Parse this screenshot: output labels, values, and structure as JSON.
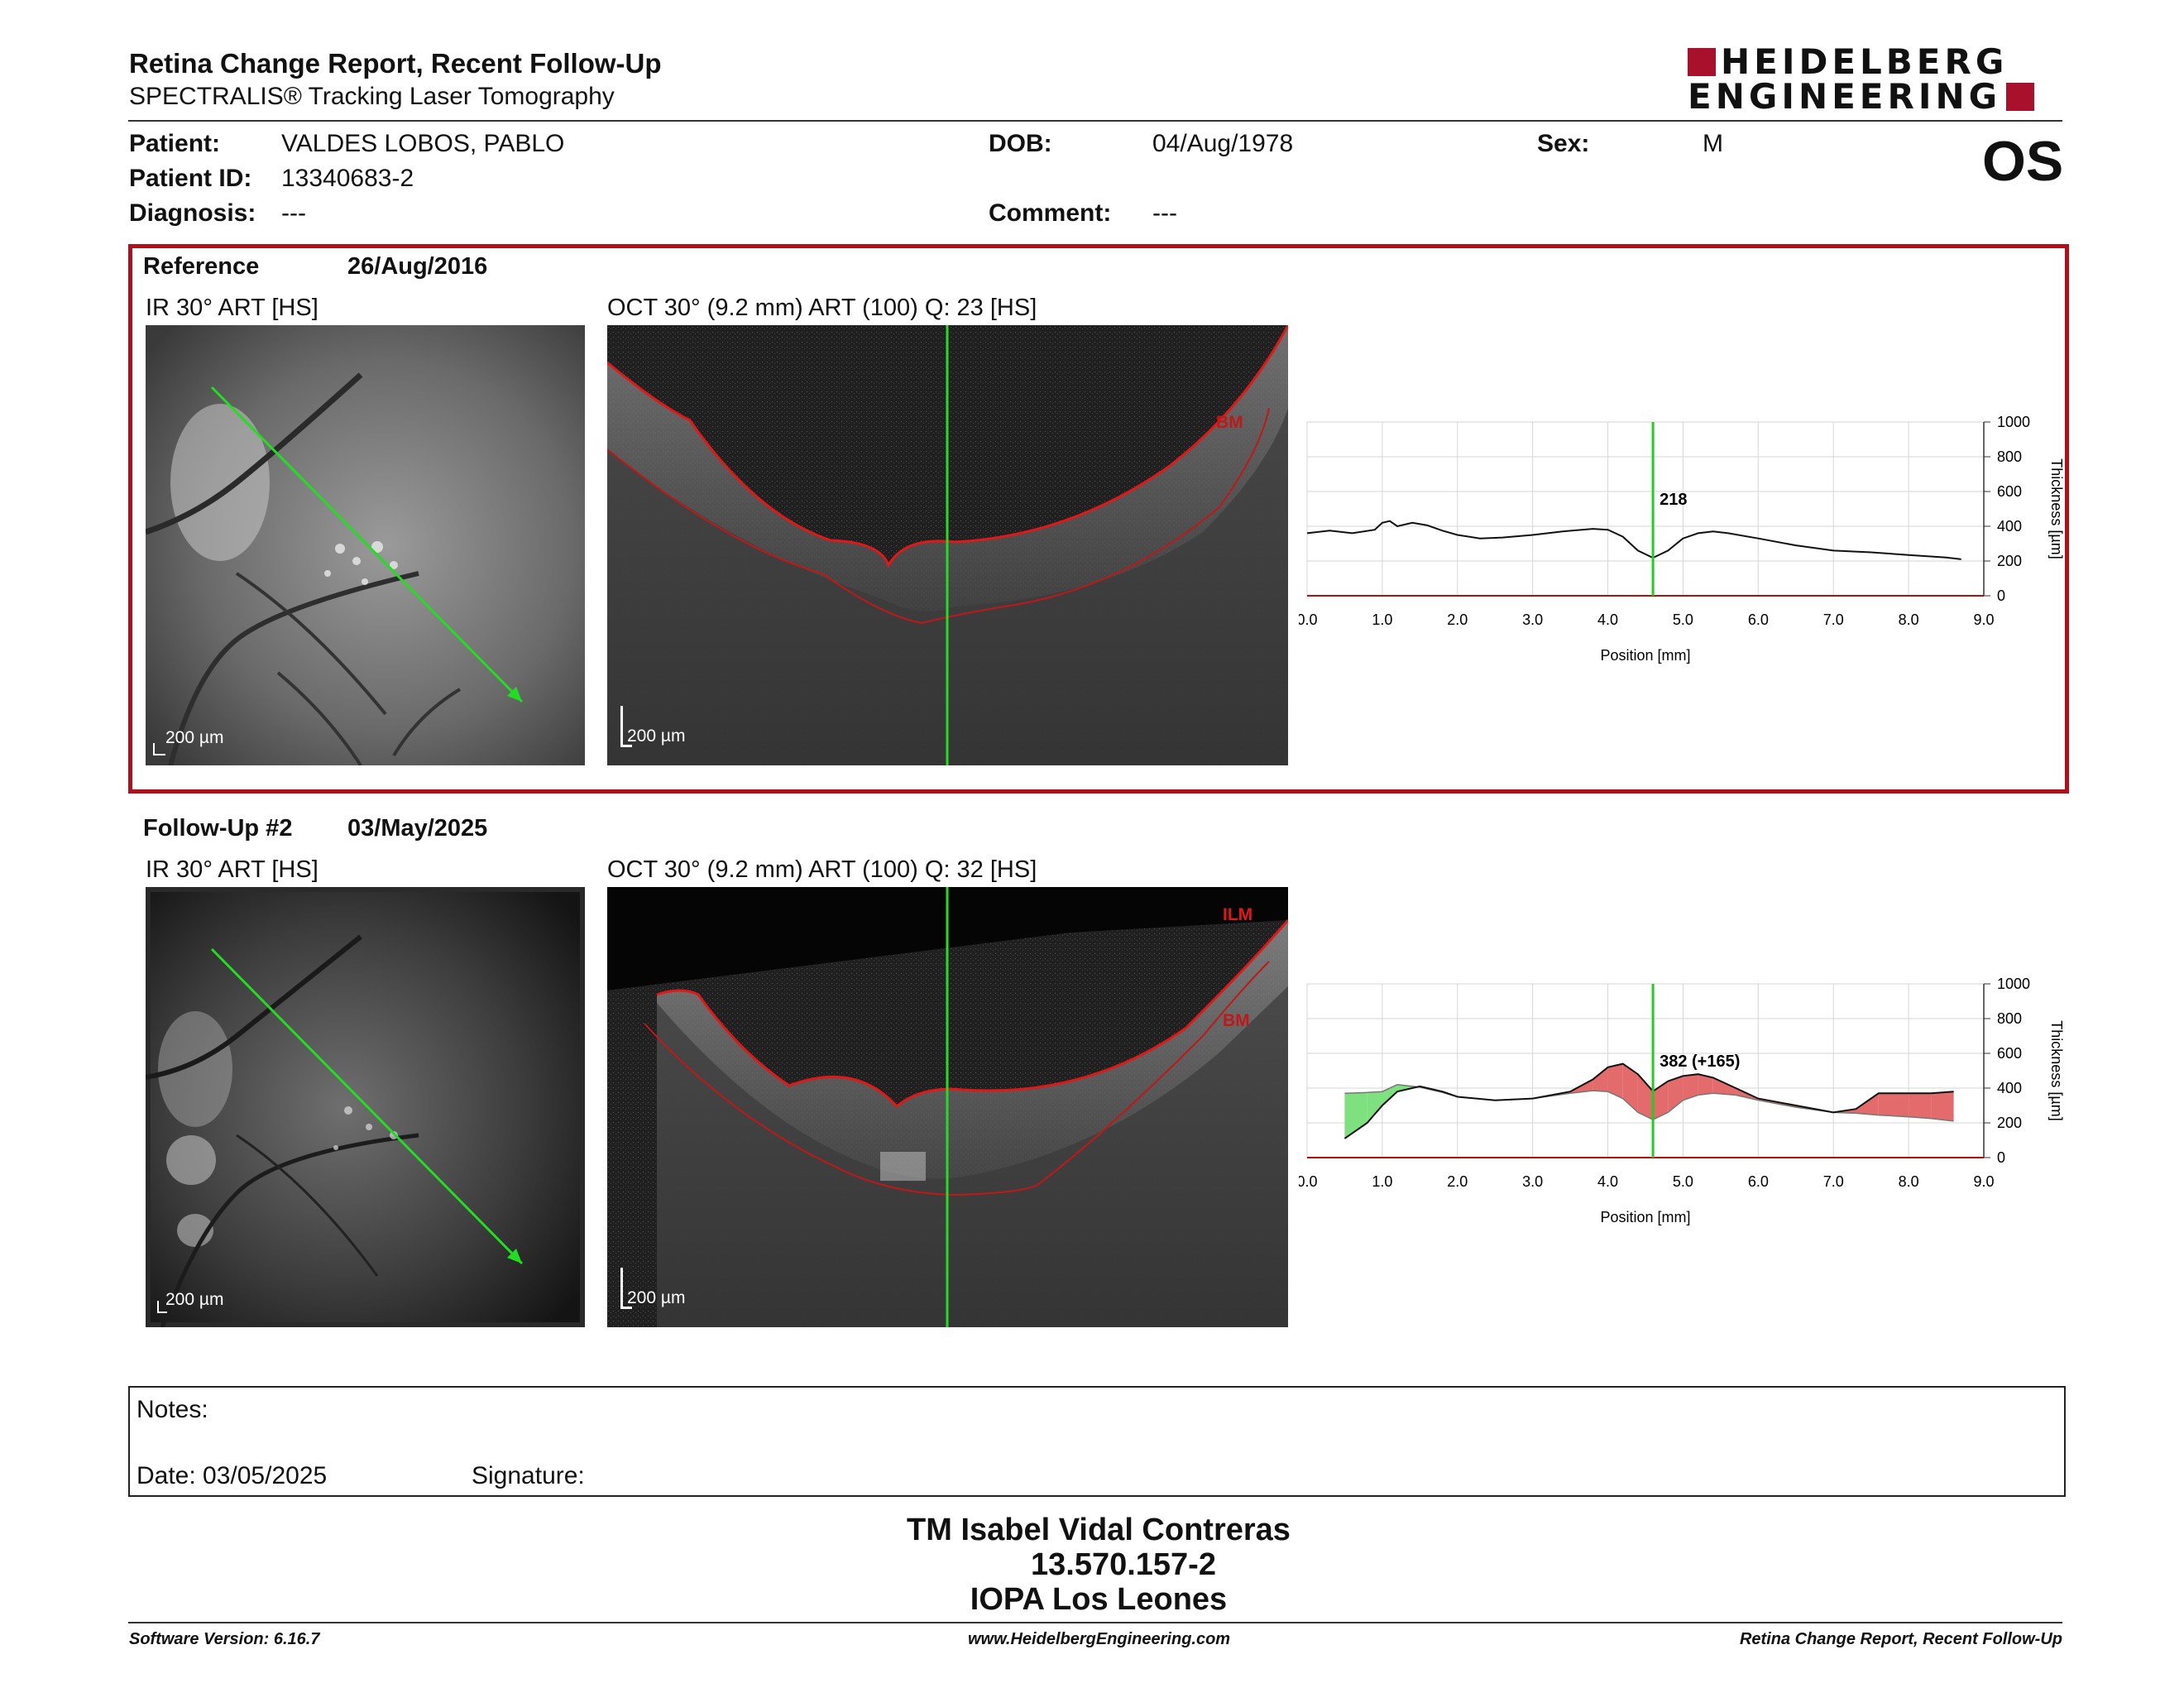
{
  "report": {
    "title": "Retina Change Report, Recent Follow-Up",
    "subtitle": "SPECTRALIS® Tracking Laser Tomography",
    "brand_line1": "HEIDELBERG",
    "brand_line2": "ENGINEERING",
    "brand_color": "#a8102c",
    "eye": "OS"
  },
  "patient": {
    "name_label": "Patient:",
    "name": "VALDES LOBOS, PABLO",
    "id_label": "Patient ID:",
    "id": "13340683-2",
    "diagnosis_label": "Diagnosis:",
    "diagnosis": "---",
    "dob_label": "DOB:",
    "dob": "04/Aug/1978",
    "comment_label": "Comment:",
    "comment": "---",
    "sex_label": "Sex:",
    "sex": "M"
  },
  "reference": {
    "label": "Reference",
    "date": "26/Aug/2016",
    "ir_caption": "IR 30° ART [HS]",
    "oct_caption": "OCT 30° (9.2 mm) ART (100) Q: 23 [HS]",
    "ir_scale": "200 µm",
    "oct_scale": "200 µm",
    "layer_labels": [
      "BM"
    ],
    "border_color": "#b0101c"
  },
  "followup": {
    "label": "Follow-Up #2",
    "date": "03/May/2025",
    "ir_caption": "IR 30° ART [HS]",
    "oct_caption": "OCT 30° (9.2 mm) ART (100) Q: 32 [HS]",
    "ir_scale": "200 µm",
    "oct_scale": "200 µm",
    "layer_labels": [
      "ILM",
      "BM"
    ]
  },
  "chart_data": [
    {
      "type": "line",
      "xlabel": "Position [mm]",
      "ylabel": "Thickness [µm]",
      "xlim": [
        0,
        9
      ],
      "ylim": [
        0,
        1000
      ],
      "xticks": [
        "0.0",
        "1.0",
        "2.0",
        "3.0",
        "4.0",
        "5.0",
        "6.0",
        "7.0",
        "8.0",
        "9.0"
      ],
      "yticks": [
        "0",
        "200",
        "400",
        "600",
        "800",
        "1000"
      ],
      "grid": true,
      "cursor_x": 4.6,
      "cursor_label": "218",
      "cursor_color": "#22cc22",
      "series": [
        {
          "x": [
            0.0,
            0.3,
            0.6,
            0.9,
            1.0,
            1.1,
            1.2,
            1.4,
            1.6,
            1.8,
            2.0,
            2.3,
            2.6,
            3.0,
            3.4,
            3.8,
            4.0,
            4.2,
            4.4,
            4.6,
            4.8,
            5.0,
            5.2,
            5.4,
            5.6,
            6.0,
            6.5,
            7.0,
            7.5,
            8.0,
            8.5,
            8.7
          ],
          "y": [
            360,
            375,
            360,
            380,
            420,
            430,
            400,
            420,
            405,
            375,
            350,
            330,
            335,
            350,
            370,
            385,
            380,
            340,
            260,
            218,
            260,
            330,
            360,
            370,
            360,
            330,
            290,
            260,
            250,
            235,
            220,
            210
          ]
        }
      ]
    },
    {
      "type": "area",
      "xlabel": "Position [mm]",
      "ylabel": "Thickness [µm]",
      "xlim": [
        0,
        9
      ],
      "ylim": [
        0,
        1000
      ],
      "xticks": [
        "0.0",
        "1.0",
        "2.0",
        "3.0",
        "4.0",
        "5.0",
        "6.0",
        "7.0",
        "8.0",
        "9.0"
      ],
      "yticks": [
        "0",
        "200",
        "400",
        "600",
        "800",
        "1000"
      ],
      "grid": true,
      "cursor_x": 4.6,
      "cursor_label": "382 (+165)",
      "cursor_color": "#22cc22",
      "increase_color": "#e46b6b",
      "decrease_color": "#7fe07f",
      "series": [
        {
          "name": "Follow-Up",
          "x": [
            0.5,
            0.8,
            1.0,
            1.2,
            1.5,
            1.8,
            2.0,
            2.5,
            3.0,
            3.5,
            3.8,
            4.0,
            4.2,
            4.4,
            4.6,
            4.8,
            5.0,
            5.2,
            5.4,
            5.7,
            6.0,
            6.5,
            7.0,
            7.3,
            7.6,
            8.0,
            8.3,
            8.6
          ],
          "y": [
            110,
            200,
            300,
            380,
            410,
            380,
            350,
            330,
            340,
            380,
            450,
            520,
            540,
            480,
            382,
            440,
            470,
            480,
            460,
            400,
            340,
            300,
            260,
            280,
            370,
            370,
            370,
            380
          ]
        },
        {
          "name": "Reference",
          "x": [
            0.5,
            0.8,
            1.0,
            1.2,
            1.5,
            1.8,
            2.0,
            2.5,
            3.0,
            3.5,
            3.8,
            4.0,
            4.2,
            4.4,
            4.6,
            4.8,
            5.0,
            5.2,
            5.4,
            5.7,
            6.0,
            6.5,
            7.0,
            7.3,
            7.6,
            8.0,
            8.3,
            8.6
          ],
          "y": [
            370,
            375,
            380,
            420,
            405,
            375,
            350,
            330,
            340,
            370,
            385,
            380,
            340,
            260,
            218,
            260,
            330,
            360,
            370,
            360,
            330,
            290,
            260,
            255,
            245,
            235,
            225,
            210
          ]
        }
      ]
    }
  ],
  "notes": {
    "label": "Notes:",
    "date_text": "Date: 03/05/2025",
    "signature_label": "Signature:"
  },
  "signature_block": {
    "line1": "TM Isabel Vidal Contreras",
    "line2": "13.570.157-2",
    "line3": "IOPA Los Leones"
  },
  "footer": {
    "software": "Software Version: 6.16.7",
    "website": "www.HeidelbergEngineering.com",
    "report_name": "Retina Change Report, Recent Follow-Up"
  }
}
